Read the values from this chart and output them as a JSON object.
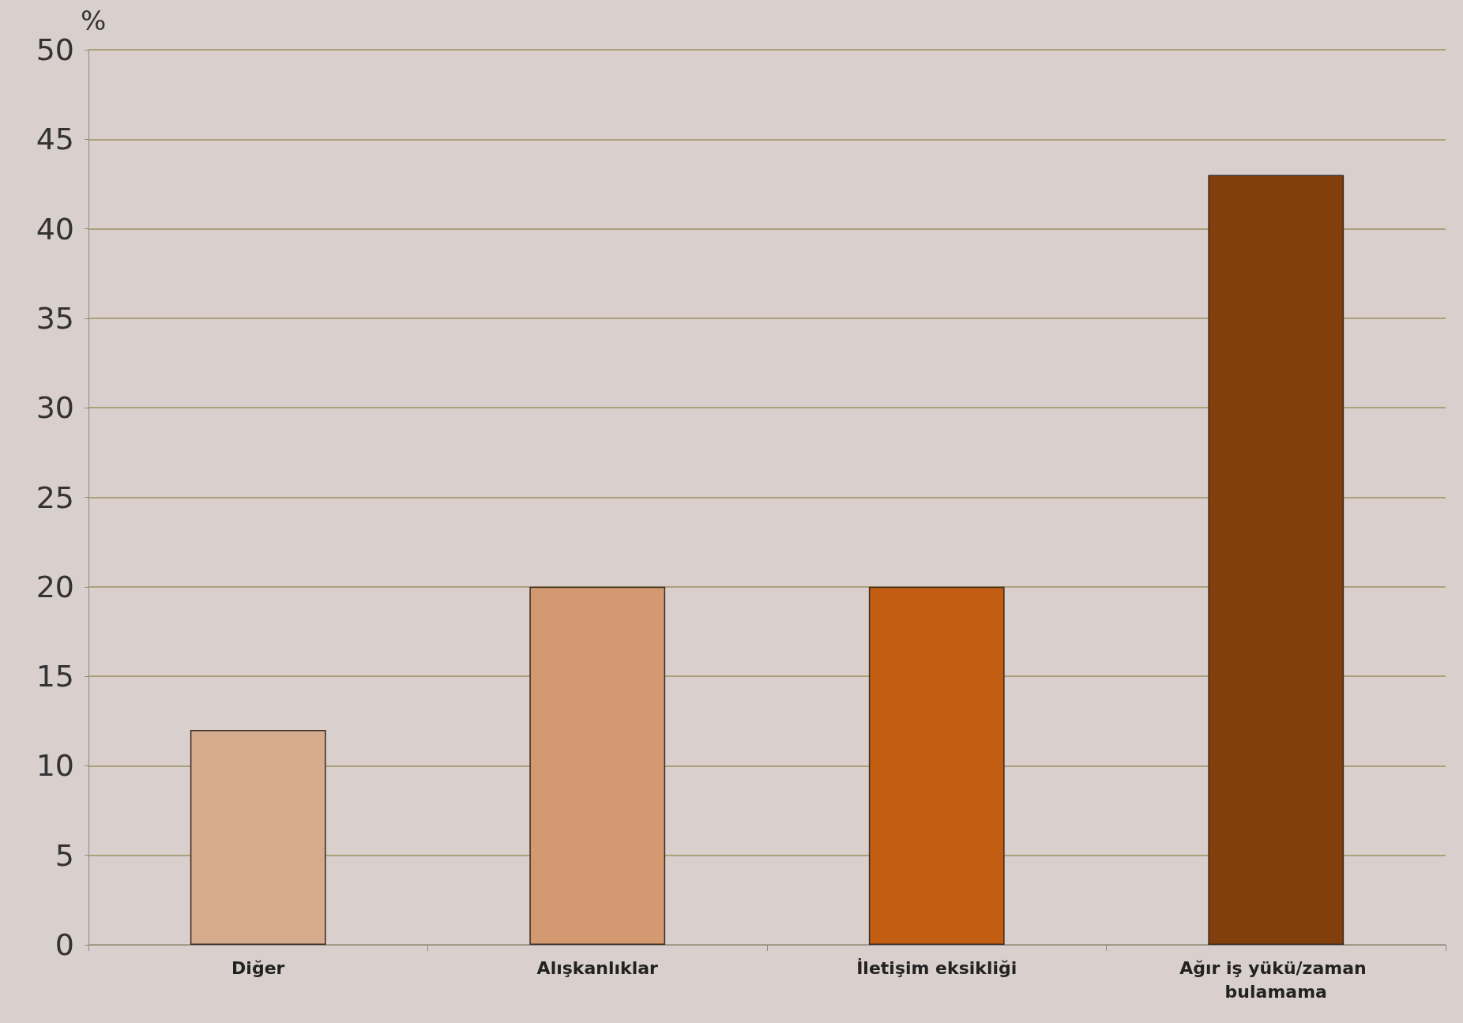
{
  "chart_data": {
    "type": "bar",
    "ylabel": "%",
    "categories": [
      "Diğer",
      "Alışkanlıklar",
      "İletişim eksikliği",
      "Ağır iş yükü/zaman bulamama"
    ],
    "values": [
      12,
      20,
      20,
      43
    ],
    "colors": [
      "#d6ab8e",
      "#d39a72",
      "#c25d12",
      "#823f0b"
    ],
    "ylim": [
      0,
      50
    ],
    "yticks": [
      0,
      5,
      10,
      15,
      20,
      25,
      30,
      35,
      40,
      45,
      50
    ],
    "grid": "y"
  }
}
